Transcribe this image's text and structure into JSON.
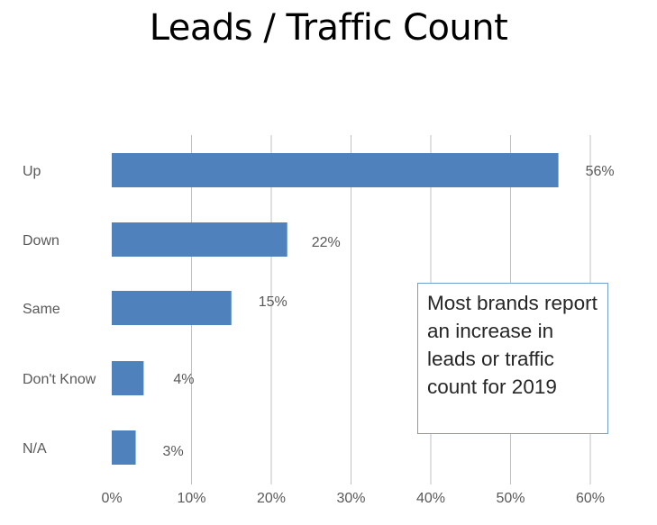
{
  "title": "Leads / Traffic Count",
  "callout_text": "Most brands report an increase in leads or traffic count for 2019",
  "colors": {
    "bar": "#4f81bd",
    "grid": "#c0c0c0",
    "label": "#595959",
    "callout_border": "#6fa0d0"
  },
  "chart_data": {
    "type": "bar",
    "orientation": "horizontal",
    "categories": [
      "Up",
      "Down",
      "Same",
      "Don't Know",
      "N/A"
    ],
    "values": [
      56,
      22,
      15,
      4,
      3
    ],
    "data_labels": [
      "56%",
      "22%",
      "15%",
      "4%",
      "3%"
    ],
    "x_ticks": [
      "0%",
      "10%",
      "20%",
      "30%",
      "40%",
      "50%",
      "60%"
    ],
    "xlim": [
      0,
      60
    ],
    "grid": true,
    "legend": "none"
  }
}
